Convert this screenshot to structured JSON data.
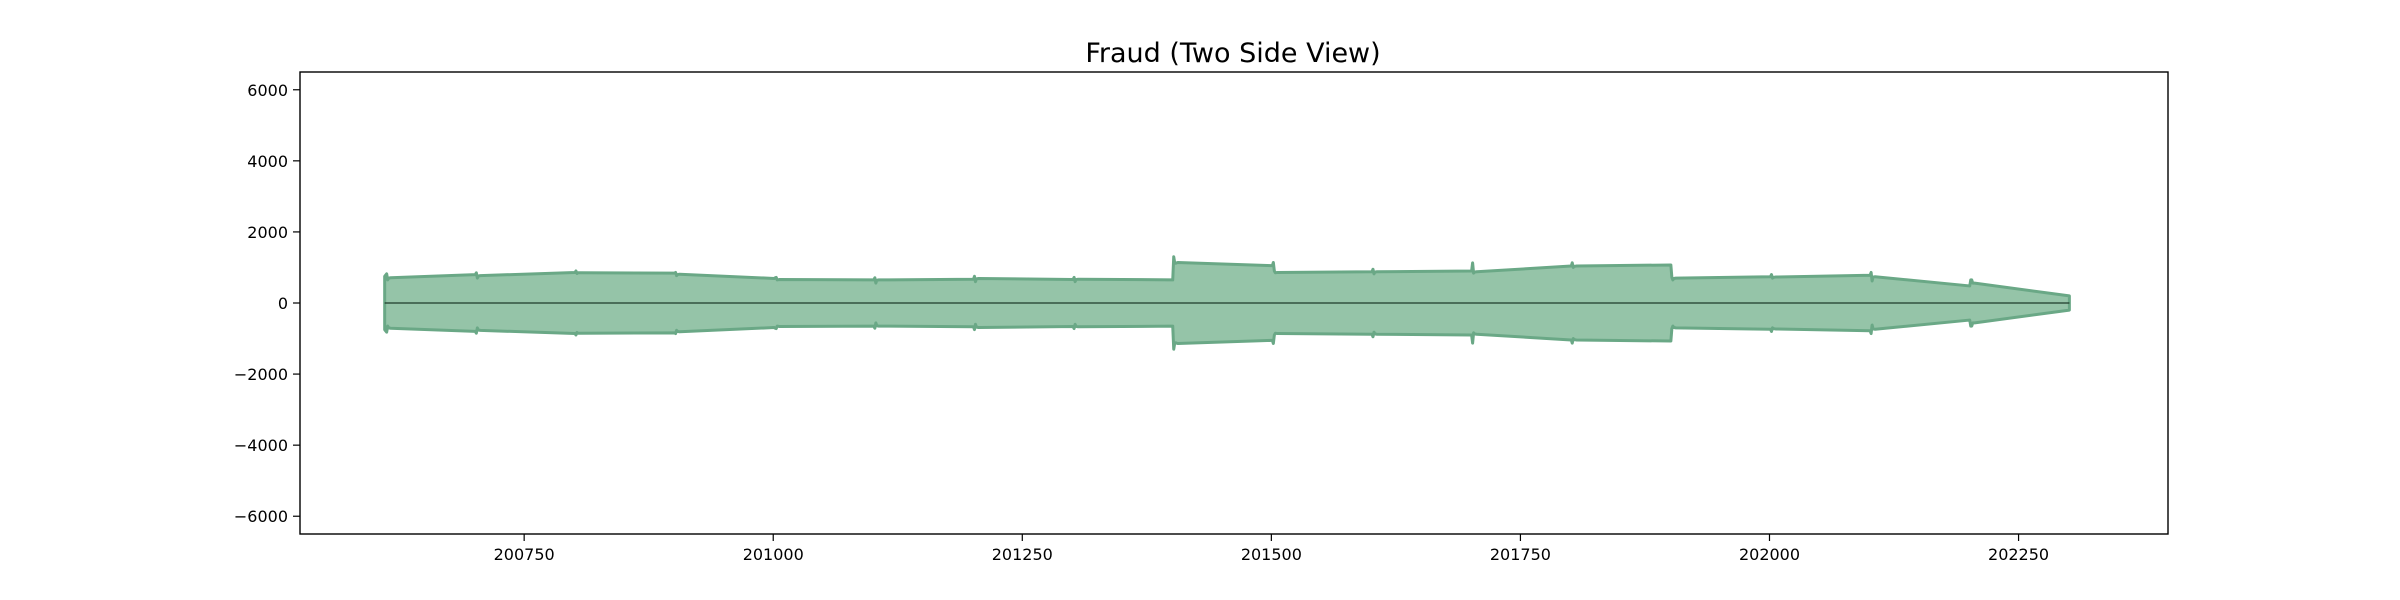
{
  "chart_data": {
    "type": "area",
    "title": "Fraud (Two Side View)",
    "xlabel": "",
    "ylabel": "",
    "xlim": [
      200525,
      202400
    ],
    "ylim": [
      -6500,
      6500
    ],
    "xticks": [
      200750,
      201000,
      201250,
      201500,
      201750,
      202000,
      202250
    ],
    "yticks": [
      -6000,
      -4000,
      -2000,
      0,
      2000,
      4000,
      6000
    ],
    "ytick_labels": [
      "−6000",
      "−4000",
      "−2000",
      "0",
      "2000",
      "4000",
      "6000"
    ],
    "fill_color": "#95c4a8",
    "line_color": "#6aa886",
    "zero_line_color": "#1f3a2a",
    "grid": false,
    "series": [
      {
        "name": "Fraud",
        "mirrored": true,
        "x": [
          200610,
          200612,
          200613,
          200614,
          200616,
          200701,
          200702,
          200703,
          200704,
          200706,
          200801,
          200802,
          200803,
          200804,
          200806,
          200901,
          200902,
          200903,
          200904,
          200906,
          201001,
          201002,
          201003,
          201004,
          201006,
          201101,
          201102,
          201103,
          201104,
          201106,
          201201,
          201202,
          201203,
          201204,
          201206,
          201301,
          201302,
          201303,
          201304,
          201306,
          201401,
          201402,
          201403,
          201404,
          201406,
          201501,
          201502,
          201503,
          201504,
          201506,
          201601,
          201602,
          201603,
          201604,
          201606,
          201701,
          201702,
          201703,
          201704,
          201706,
          201801,
          201802,
          201803,
          201804,
          201806,
          201901,
          201902,
          201903,
          201904,
          201906,
          202001,
          202002,
          202003,
          202004,
          202006,
          202101,
          202102,
          202103,
          202104,
          202106,
          202201,
          202202,
          202203,
          202204,
          202206,
          202301
        ],
        "values": [
          750,
          820,
          650,
          700,
          710,
          800,
          850,
          700,
          760,
          770,
          860,
          900,
          830,
          850,
          850,
          840,
          860,
          770,
          800,
          810,
          690,
          710,
          720,
          650,
          660,
          650,
          710,
          560,
          640,
          650,
          670,
          750,
          600,
          680,
          690,
          660,
          720,
          600,
          660,
          670,
          650,
          1300,
          1130,
          1120,
          1140,
          1050,
          1140,
          900,
          850,
          860,
          880,
          950,
          820,
          870,
          880,
          900,
          1130,
          840,
          870,
          880,
          1040,
          1130,
          1000,
          1030,
          1040,
          1070,
          720,
          650,
          690,
          700,
          740,
          800,
          700,
          720,
          730,
          780,
          860,
          620,
          730,
          740,
          480,
          650,
          650,
          560,
          560,
          200
        ]
      }
    ]
  }
}
